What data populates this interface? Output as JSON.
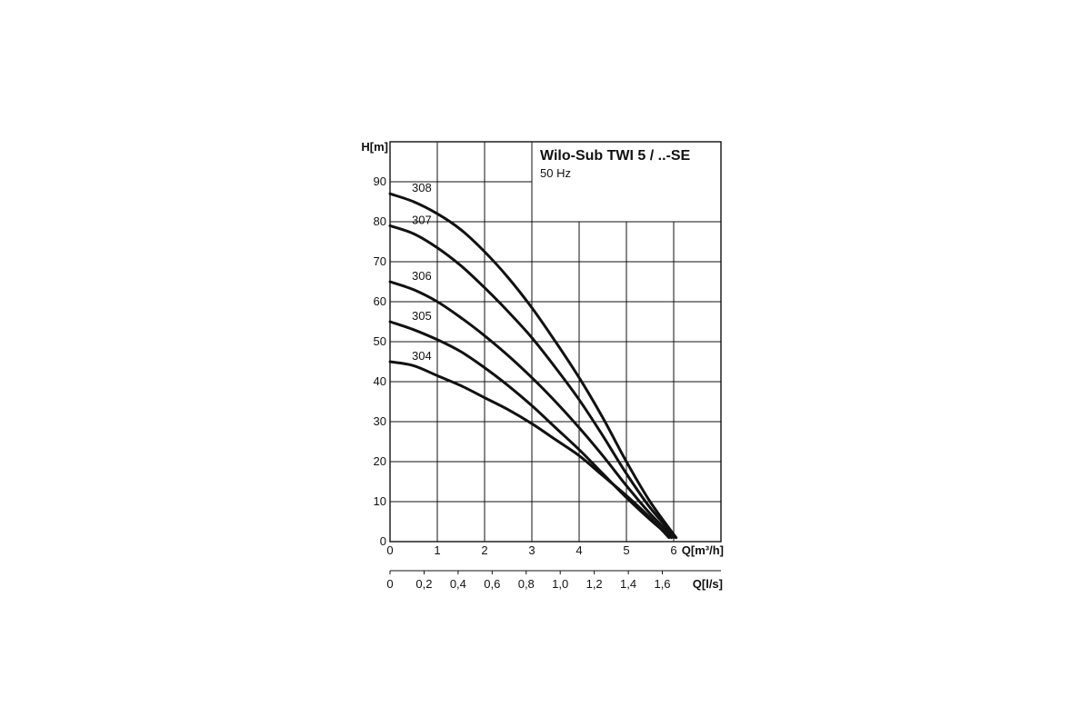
{
  "chart_data": {
    "type": "line",
    "title": "Wilo-Sub TWI 5 / ..-SE",
    "subtitle": "50 Hz",
    "ylabel": "H[m]",
    "xlabel": "Q[m³/h]",
    "x2label": "Q[l/s]",
    "xlim": [
      0,
      7
    ],
    "ylim": [
      0,
      100
    ],
    "grid": true,
    "x_ticks": [
      "0",
      "1",
      "2",
      "3",
      "4",
      "5",
      "6"
    ],
    "y_ticks": [
      "0",
      "10",
      "20",
      "30",
      "40",
      "50",
      "60",
      "70",
      "80",
      "90"
    ],
    "x2_ticks": [
      "0",
      "0,2",
      "0,4",
      "0,6",
      "0,8",
      "1,0",
      "1,2",
      "1,4",
      "1,6"
    ],
    "x2_tick_values_m3h": [
      0,
      0.72,
      1.44,
      2.16,
      2.88,
      3.6,
      4.32,
      5.04,
      5.76
    ],
    "series": [
      {
        "name": "308",
        "x": [
          0,
          0.5,
          1,
          1.5,
          2,
          2.5,
          3,
          3.5,
          4,
          4.5,
          5,
          5.5,
          6.05
        ],
        "y": [
          87,
          85,
          82,
          78,
          72.5,
          66,
          58.5,
          50,
          41,
          31,
          20,
          10,
          1
        ]
      },
      {
        "name": "307",
        "x": [
          0,
          0.5,
          1,
          1.5,
          2,
          2.5,
          3,
          3.5,
          4,
          4.5,
          5,
          5.5,
          6.05
        ],
        "y": [
          79,
          77,
          73.5,
          69,
          63.5,
          57.5,
          51,
          43.5,
          35.5,
          26.5,
          17,
          8.5,
          1
        ]
      },
      {
        "name": "306",
        "x": [
          0,
          0.5,
          1,
          1.5,
          2,
          2.5,
          3,
          3.5,
          4,
          4.5,
          5,
          5.5,
          6.0
        ],
        "y": [
          65,
          63,
          60,
          56,
          51.5,
          46.5,
          41,
          35,
          28.5,
          21.5,
          14,
          7,
          1
        ]
      },
      {
        "name": "305",
        "x": [
          0,
          0.5,
          1,
          1.5,
          2,
          2.5,
          3,
          3.5,
          4,
          4.5,
          5,
          5.5,
          5.95
        ],
        "y": [
          55,
          53,
          50.5,
          47.5,
          43.5,
          39,
          34,
          28.5,
          23,
          17,
          11,
          5.5,
          1
        ]
      },
      {
        "name": "304",
        "x": [
          0,
          0.5,
          1,
          1.5,
          2,
          2.5,
          3,
          3.5,
          4,
          4.5,
          5,
          5.5,
          5.9
        ],
        "y": [
          45,
          44,
          41.5,
          39,
          36,
          33,
          29.5,
          25.5,
          21.5,
          16.5,
          11.5,
          6,
          1
        ]
      }
    ]
  }
}
